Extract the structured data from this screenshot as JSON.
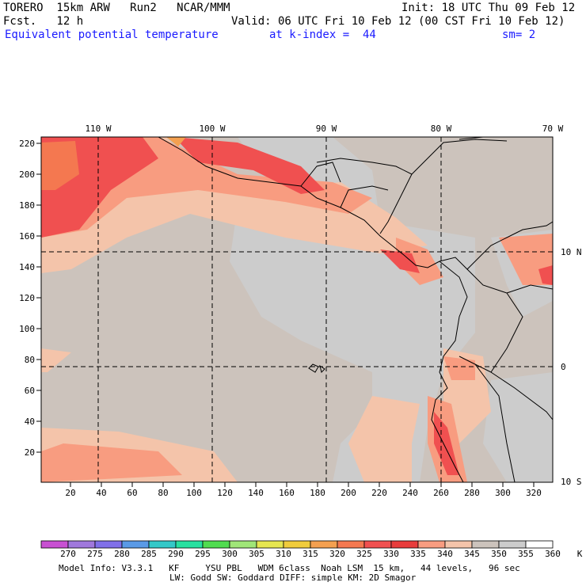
{
  "header": {
    "model": "TORERO  15km ARW   Run2   NCAR/MMM",
    "init": "Init: 18 UTC Thu 09 Feb 12",
    "fcst": "Fcst.   12 h",
    "valid": "Valid: 06 UTC Fri 10 Feb 12 (00 CST Fri 10 Feb 12)",
    "field": "Equivalent potential temperature",
    "level": "at k-index =  44",
    "smooth": "sm= 2"
  },
  "map": {
    "top_lon_labels": [
      "110 W",
      "100 W",
      "90 W",
      "80 W",
      "70 W"
    ],
    "right_lat_labels": [
      "10 N",
      "0",
      "10 S"
    ],
    "y_ticks": [
      "220",
      "200",
      "180",
      "160",
      "140",
      "120",
      "100",
      "80",
      "60",
      "40",
      "20"
    ],
    "x_ticks": [
      "20",
      "40",
      "60",
      "80",
      "100",
      "120",
      "140",
      "160",
      "180",
      "200",
      "220",
      "240",
      "260",
      "280",
      "300",
      "320"
    ]
  },
  "colorbar": {
    "colors": [
      "#c850d2",
      "#a078dc",
      "#8070e8",
      "#5a9ae6",
      "#34c8c8",
      "#28e0a0",
      "#50dc50",
      "#a0e678",
      "#e6e650",
      "#f0cc3c",
      "#f4a050",
      "#f47850",
      "#f05050",
      "#e83c3c",
      "#f89c80",
      "#f4c4aa",
      "#ccc3bc",
      "#cccccc",
      "#ffffff"
    ],
    "labels": [
      "270",
      "275",
      "280",
      "285",
      "290",
      "295",
      "300",
      "305",
      "310",
      "315",
      "320",
      "325",
      "330",
      "335",
      "340",
      "345",
      "350",
      "355",
      "360",
      "K"
    ]
  },
  "footer": {
    "line1": "Model Info: V3.3.1   KF     YSU PBL   WDM 6class  Noah LSM  15 km,   44 levels,   96 sec",
    "line2": "LW: Godd SW: Goddard DIFF: simple KM: 2D Smagor"
  }
}
